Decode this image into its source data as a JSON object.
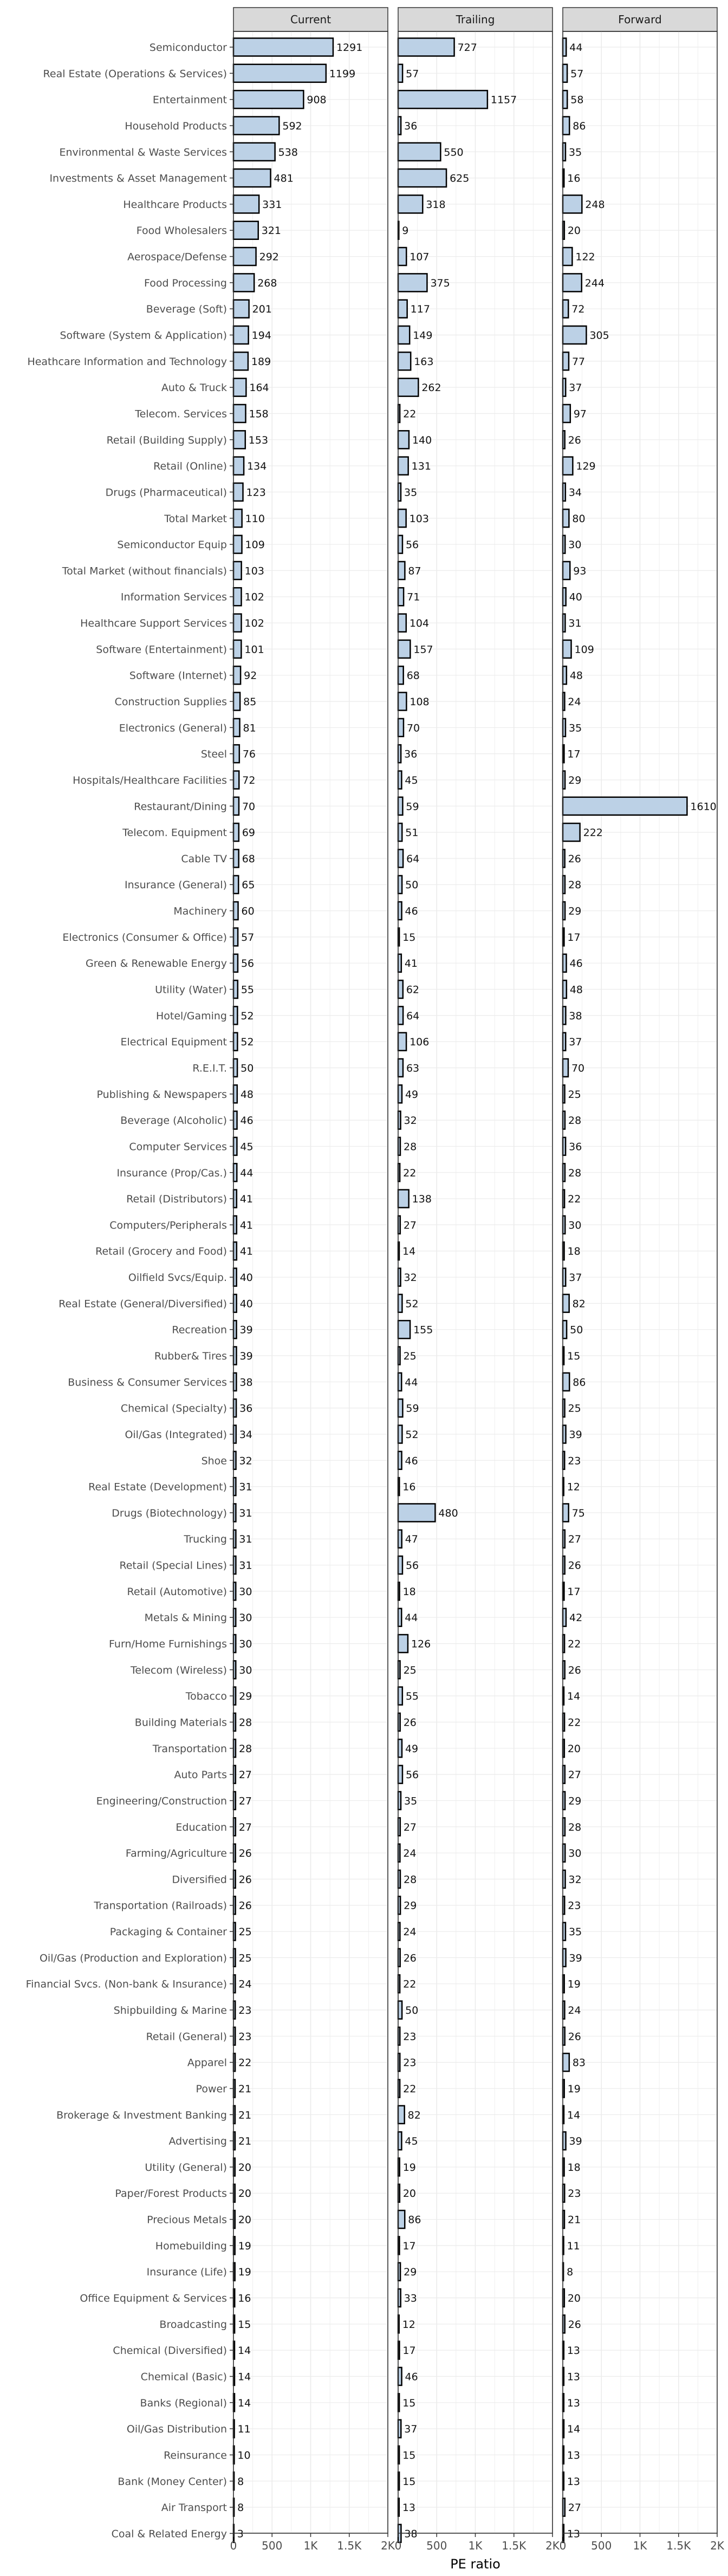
{
  "chart_data": {
    "type": "bar",
    "orientation": "horizontal",
    "facets": [
      "Current",
      "Trailing",
      "Forward"
    ],
    "xlabel": "PE ratio",
    "ylabel": "",
    "xlim": [
      0,
      2000
    ],
    "x_ticks": [
      0,
      500,
      1000,
      1500,
      2000
    ],
    "x_tick_labels": [
      "0",
      "500",
      "1K",
      "1.5K",
      "2K"
    ],
    "grid": true,
    "colors": {
      "bar_fill": "#bcd1e6",
      "bar_stroke": "#000000",
      "strip_fill": "#d9d9d9",
      "grid": "#ebebeb"
    },
    "categories": [
      "Semiconductor",
      "Real Estate (Operations & Services)",
      "Entertainment",
      "Household Products",
      "Environmental & Waste Services",
      "Investments & Asset Management",
      "Healthcare Products",
      "Food Wholesalers",
      "Aerospace/Defense",
      "Food Processing",
      "Beverage (Soft)",
      "Software (System & Application)",
      "Heathcare Information and Technology",
      "Auto & Truck",
      "Telecom. Services",
      "Retail (Building Supply)",
      "Retail (Online)",
      "Drugs (Pharmaceutical)",
      "Total Market",
      "Semiconductor Equip",
      "Total Market (without financials)",
      "Information Services",
      "Healthcare Support Services",
      "Software (Entertainment)",
      "Software (Internet)",
      "Construction Supplies",
      "Electronics (General)",
      "Steel",
      "Hospitals/Healthcare Facilities",
      "Restaurant/Dining",
      "Telecom. Equipment",
      "Cable TV",
      "Insurance (General)",
      "Machinery",
      "Electronics (Consumer & Office)",
      "Green & Renewable Energy",
      "Utility (Water)",
      "Hotel/Gaming",
      "Electrical Equipment",
      "R.E.I.T.",
      "Publishing & Newspapers",
      "Beverage (Alcoholic)",
      "Computer Services",
      "Insurance (Prop/Cas.)",
      "Retail (Distributors)",
      "Computers/Peripherals",
      "Retail (Grocery and Food)",
      "Oilfield Svcs/Equip.",
      "Real Estate (General/Diversified)",
      "Recreation",
      "Rubber& Tires",
      "Business & Consumer Services",
      "Chemical (Specialty)",
      "Oil/Gas (Integrated)",
      "Shoe",
      "Real Estate (Development)",
      "Drugs (Biotechnology)",
      "Trucking",
      "Retail (Special Lines)",
      "Retail (Automotive)",
      "Metals & Mining",
      "Furn/Home Furnishings",
      "Telecom (Wireless)",
      "Tobacco",
      "Building Materials",
      "Transportation",
      "Auto Parts",
      "Engineering/Construction",
      "Education",
      "Farming/Agriculture",
      "Diversified",
      "Transportation (Railroads)",
      "Packaging & Container",
      "Oil/Gas (Production and Exploration)",
      "Financial Svcs. (Non-bank & Insurance)",
      "Shipbuilding & Marine",
      "Retail (General)",
      "Apparel",
      "Power",
      "Brokerage & Investment Banking",
      "Advertising",
      "Utility (General)",
      "Paper/Forest Products",
      "Precious Metals",
      "Homebuilding",
      "Insurance (Life)",
      "Office Equipment & Services",
      "Broadcasting",
      "Chemical (Diversified)",
      "Chemical (Basic)",
      "Banks (Regional)",
      "Oil/Gas Distribution",
      "Reinsurance",
      "Bank (Money Center)",
      "Air Transport",
      "Coal & Related Energy"
    ],
    "series": [
      {
        "name": "Current",
        "values": [
          1291,
          1199,
          908,
          592,
          538,
          481,
          331,
          321,
          292,
          268,
          201,
          194,
          189,
          164,
          158,
          153,
          134,
          123,
          110,
          109,
          103,
          102,
          102,
          101,
          92,
          85,
          81,
          76,
          72,
          70,
          69,
          68,
          65,
          60,
          57,
          56,
          55,
          52,
          52,
          50,
          48,
          46,
          45,
          44,
          41,
          41,
          41,
          40,
          40,
          39,
          39,
          38,
          36,
          34,
          32,
          31,
          31,
          31,
          31,
          30,
          30,
          30,
          30,
          29,
          28,
          28,
          27,
          27,
          27,
          26,
          26,
          26,
          25,
          25,
          24,
          23,
          23,
          22,
          21,
          21,
          21,
          20,
          20,
          20,
          19,
          19,
          16,
          15,
          14,
          14,
          14,
          11,
          10,
          8,
          8,
          3
        ]
      },
      {
        "name": "Trailing",
        "values": [
          727,
          57,
          1157,
          36,
          550,
          625,
          318,
          9,
          107,
          375,
          117,
          149,
          163,
          262,
          22,
          140,
          131,
          35,
          103,
          56,
          87,
          71,
          104,
          157,
          68,
          108,
          70,
          36,
          45,
          59,
          51,
          64,
          50,
          46,
          15,
          41,
          62,
          64,
          106,
          63,
          49,
          32,
          28,
          22,
          138,
          27,
          14,
          32,
          52,
          155,
          25,
          44,
          59,
          52,
          46,
          16,
          480,
          47,
          56,
          18,
          44,
          126,
          25,
          55,
          26,
          49,
          56,
          35,
          27,
          24,
          28,
          29,
          24,
          26,
          22,
          50,
          23,
          23,
          22,
          82,
          45,
          19,
          20,
          86,
          17,
          29,
          33,
          12,
          17,
          46,
          15,
          37,
          15,
          15,
          13,
          38
        ]
      },
      {
        "name": "Forward",
        "values": [
          44,
          57,
          58,
          86,
          35,
          16,
          248,
          20,
          122,
          244,
          72,
          305,
          77,
          37,
          97,
          26,
          129,
          34,
          80,
          30,
          93,
          40,
          31,
          109,
          48,
          24,
          35,
          17,
          29,
          1610,
          222,
          26,
          28,
          29,
          17,
          46,
          48,
          38,
          37,
          70,
          25,
          28,
          36,
          28,
          22,
          30,
          18,
          37,
          82,
          50,
          15,
          86,
          25,
          39,
          23,
          12,
          75,
          27,
          26,
          17,
          42,
          22,
          26,
          14,
          22,
          20,
          27,
          29,
          28,
          30,
          32,
          23,
          35,
          39,
          19,
          24,
          26,
          83,
          19,
          14,
          39,
          18,
          23,
          21,
          11,
          8,
          20,
          26,
          13,
          13,
          13,
          14,
          13,
          13,
          27,
          13
        ]
      }
    ]
  }
}
